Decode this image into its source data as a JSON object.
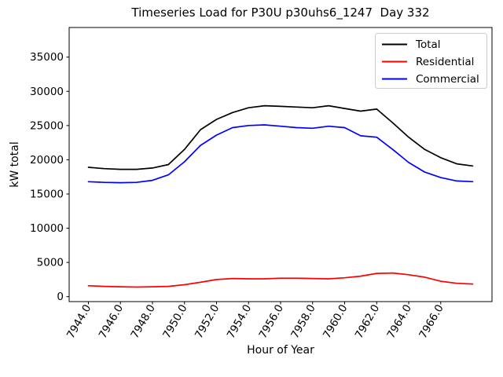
{
  "title": "Timeseries Load for P30U p30uhs6_1247  Day 332",
  "chart_data": {
    "type": "line",
    "title": "Timeseries Load for P30U p30uhs6_1247  Day 332",
    "xlabel": "Hour of Year",
    "ylabel": "kW total",
    "grid": false,
    "legend_position": "upper right",
    "xlim": [
      7942.8,
      7969.2
    ],
    "ylim": [
      -723,
      39327
    ],
    "xtick_rotation": 60,
    "xticks": [
      7944,
      7946,
      7948,
      7950,
      7952,
      7954,
      7956,
      7958,
      7960,
      7962,
      7964,
      7966
    ],
    "xtick_labels": [
      "7944.0",
      "7946.0",
      "7948.0",
      "7950.0",
      "7952.0",
      "7954.0",
      "7956.0",
      "7958.0",
      "7960.0",
      "7962.0",
      "7964.0",
      "7966.0"
    ],
    "yticks": [
      0,
      5000,
      10000,
      15000,
      20000,
      25000,
      30000,
      35000
    ],
    "ytick_labels": [
      "0",
      "5000",
      "10000",
      "15000",
      "20000",
      "25000",
      "30000",
      "35000"
    ],
    "x": [
      7944,
      7945,
      7946,
      7947,
      7948,
      7949,
      7950,
      7951,
      7952,
      7953,
      7954,
      7955,
      7956,
      7957,
      7958,
      7959,
      7960,
      7961,
      7962,
      7963,
      7964,
      7965,
      7966,
      7967,
      7968
    ],
    "series": [
      {
        "name": "Total",
        "color": "#000000",
        "values": [
          18900,
          18700,
          18600,
          18600,
          18800,
          19300,
          21500,
          24400,
          25900,
          26900,
          27600,
          27900,
          27800,
          27700,
          27600,
          27900,
          27500,
          27100,
          27400,
          25400,
          23300,
          21500,
          20300,
          19400,
          19100
        ]
      },
      {
        "name": "Residential",
        "color": "#ff0000",
        "values": [
          1600,
          1500,
          1450,
          1400,
          1450,
          1500,
          1750,
          2100,
          2500,
          2650,
          2600,
          2600,
          2700,
          2700,
          2650,
          2600,
          2750,
          3000,
          3400,
          3450,
          3200,
          2850,
          2250,
          1950,
          1850
        ]
      },
      {
        "name": "Commercial",
        "color": "#0000ff",
        "values": [
          16800,
          16700,
          16650,
          16700,
          17000,
          17800,
          19700,
          22100,
          23600,
          24700,
          25000,
          25100,
          24900,
          24700,
          24600,
          24900,
          24700,
          23500,
          23300,
          21500,
          19600,
          18200,
          17400,
          16900,
          16800
        ]
      }
    ]
  }
}
